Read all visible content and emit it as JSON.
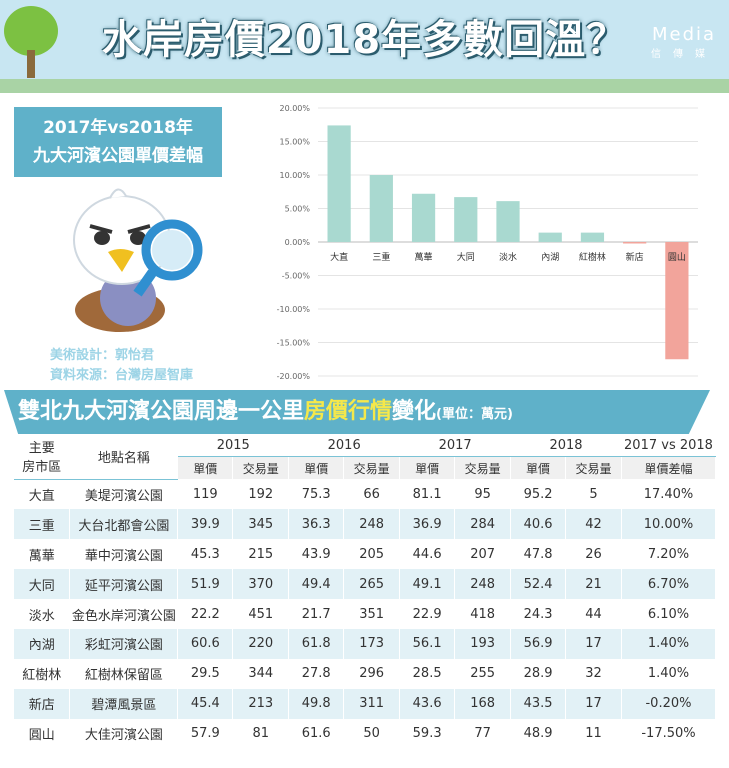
{
  "header": {
    "title": "水岸房價2018年多數回溫？",
    "brand_name": "Media",
    "brand_sub": "信傳媒"
  },
  "subtitle": {
    "line1": "2017年vs2018年",
    "line2": "九大河濱公園單價差幅"
  },
  "credits": {
    "design": "美術設計：郭怡君",
    "source": "資料來源：台灣房屋智庫"
  },
  "section": {
    "title_pre": "雙北九大河濱公園周邊一公里",
    "title_highlight": "房價行情",
    "title_post": "變化",
    "unit": "(單位：萬元)"
  },
  "colors": {
    "positive": "#a9d9d0",
    "negative": "#f2a49b",
    "accent": "#5fb1c9",
    "highlight": "#f5e84a"
  },
  "chart_data": {
    "type": "bar",
    "categories": [
      "大直",
      "三重",
      "萬華",
      "大同",
      "淡水",
      "內湖",
      "紅樹林",
      "新店",
      "圓山"
    ],
    "values": [
      17.4,
      10.0,
      7.2,
      6.7,
      6.1,
      1.4,
      1.4,
      -0.2,
      -17.5
    ],
    "ylim": [
      -20,
      20
    ],
    "yticks": [
      "20.00%",
      "15.00%",
      "10.00%",
      "5.00%",
      "0.00%",
      "-5.00%",
      "-10.00%",
      "-15.00%",
      "-20.00%"
    ],
    "grid": true
  },
  "table": {
    "col_area": "主要房市區",
    "col_area_l1": "主要",
    "col_area_l2": "房市區",
    "col_name": "地點名稱",
    "years": [
      "2015",
      "2016",
      "2017",
      "2018"
    ],
    "last_group": "2017 vs 2018",
    "sub_price": "單價",
    "sub_volume": "交易量",
    "sub_diff": "單價差幅",
    "rows": [
      [
        "大直",
        "美堤河濱公園",
        "119",
        "192",
        "75.3",
        "66",
        "81.1",
        "95",
        "95.2",
        "5",
        "17.40%"
      ],
      [
        "三重",
        "大台北都會公園",
        "39.9",
        "345",
        "36.3",
        "248",
        "36.9",
        "284",
        "40.6",
        "42",
        "10.00%"
      ],
      [
        "萬華",
        "華中河濱公園",
        "45.3",
        "215",
        "43.9",
        "205",
        "44.6",
        "207",
        "47.8",
        "26",
        "7.20%"
      ],
      [
        "大同",
        "延平河濱公園",
        "51.9",
        "370",
        "49.4",
        "265",
        "49.1",
        "248",
        "52.4",
        "21",
        "6.70%"
      ],
      [
        "淡水",
        "金色水岸河濱公園",
        "22.2",
        "451",
        "21.7",
        "351",
        "22.9",
        "418",
        "24.3",
        "44",
        "6.10%"
      ],
      [
        "內湖",
        "彩虹河濱公園",
        "60.6",
        "220",
        "61.8",
        "173",
        "56.1",
        "193",
        "56.9",
        "17",
        "1.40%"
      ],
      [
        "紅樹林",
        "紅樹林保留區",
        "29.5",
        "344",
        "27.8",
        "296",
        "28.5",
        "255",
        "28.9",
        "32",
        "1.40%"
      ],
      [
        "新店",
        "碧潭風景區",
        "45.4",
        "213",
        "49.8",
        "311",
        "43.6",
        "168",
        "43.5",
        "17",
        "-0.20%"
      ],
      [
        "圓山",
        "大佳河濱公園",
        "57.9",
        "81",
        "61.6",
        "50",
        "59.3",
        "77",
        "48.9",
        "11",
        "-17.50%"
      ]
    ]
  }
}
